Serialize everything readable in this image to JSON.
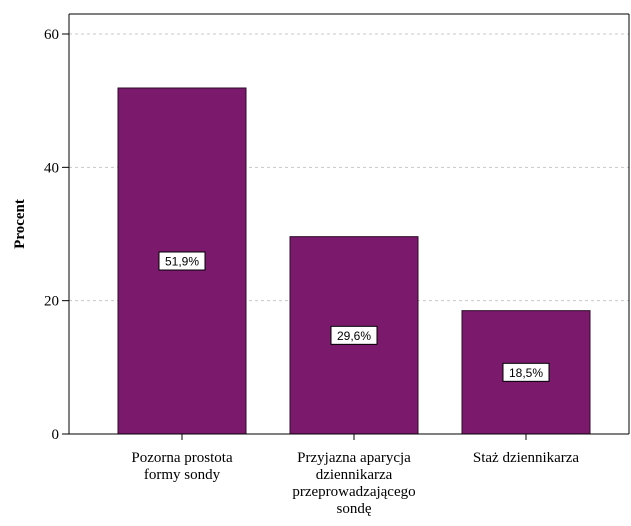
{
  "chart_data": {
    "type": "bar",
    "categories": [
      [
        "Pozorna prostota",
        "formy sondy"
      ],
      [
        "Przyjazna aparycja",
        "dziennikarza",
        "przeprowadzającego",
        "sondę"
      ],
      [
        "Staż dziennikarza"
      ]
    ],
    "values": [
      51.9,
      29.6,
      18.5
    ],
    "data_labels": [
      "51,9%",
      "29,6%",
      "18,5%"
    ],
    "ylabel": "Procent",
    "ylim": [
      0,
      60
    ],
    "yticks": [
      0,
      20,
      40,
      60
    ],
    "grid": "horizontal-dashed",
    "colors": {
      "bar": "#7b1a6c",
      "bar_stroke": "#2b0a26",
      "grid": "#c8c8c8",
      "axis": "#000000"
    }
  }
}
